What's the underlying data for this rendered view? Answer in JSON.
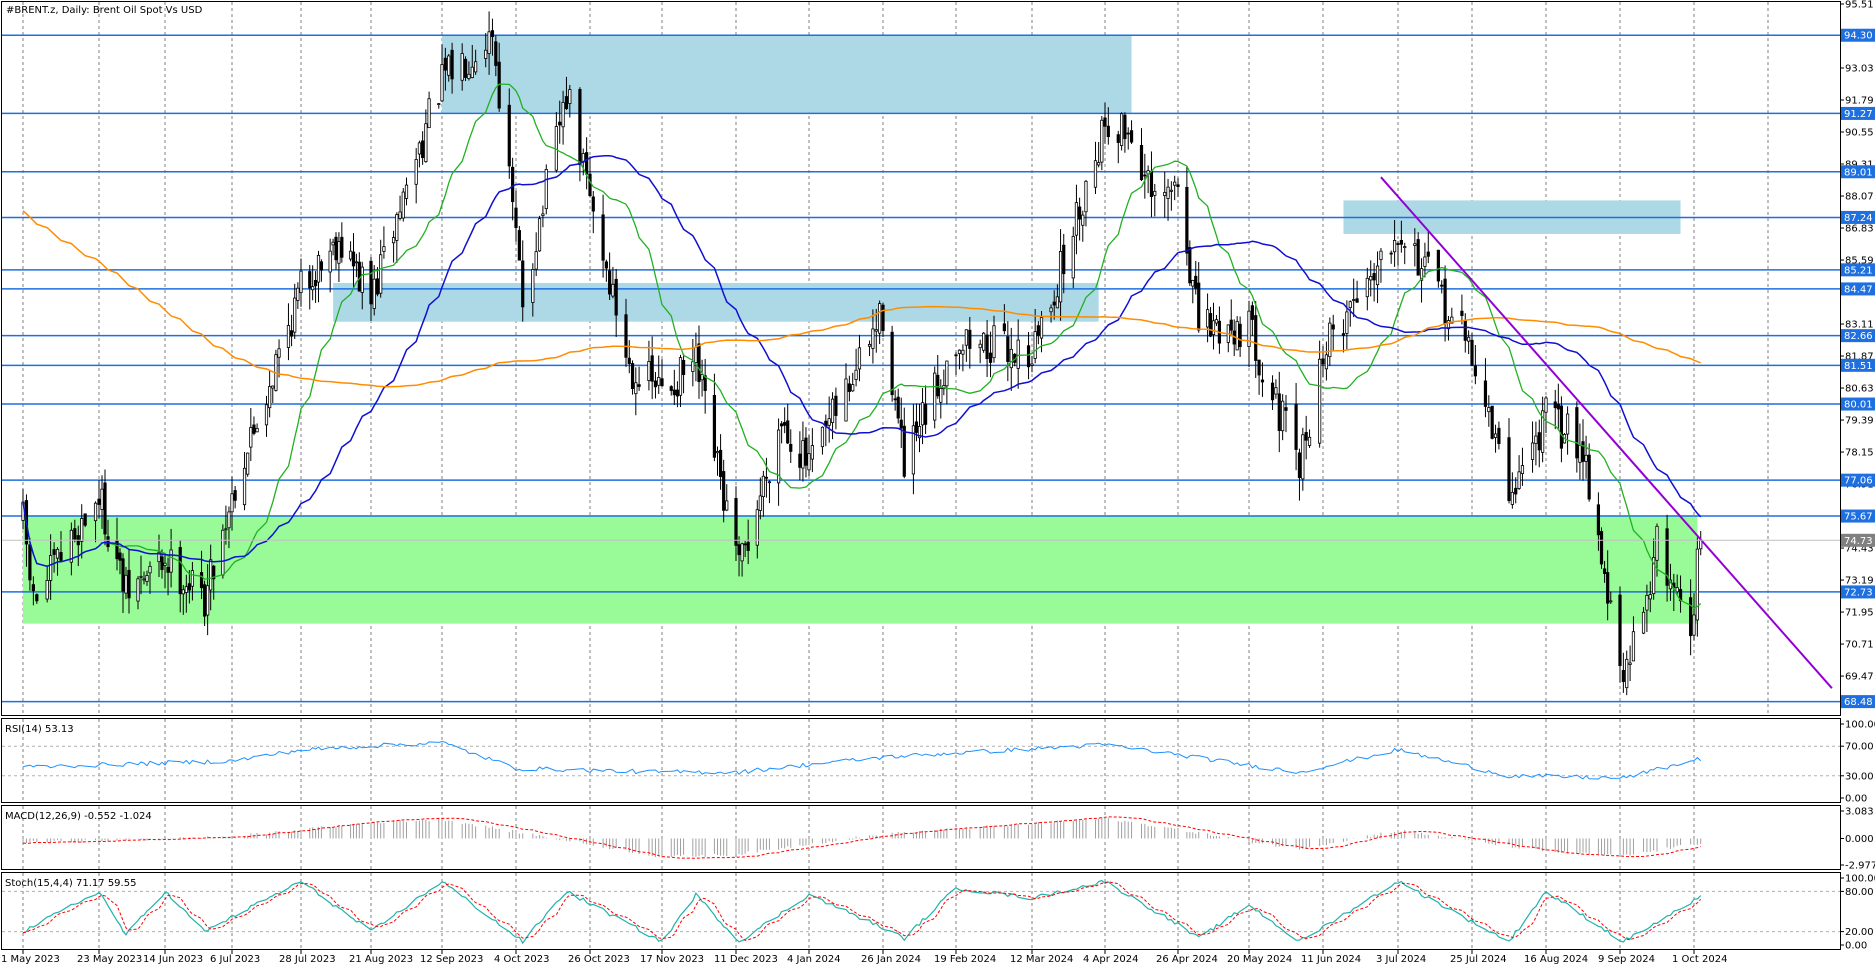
{
  "window": {
    "symbol_title": "#BRENT.z, Daily:  Brent Oil Spot Vs USD"
  },
  "colors": {
    "background": "#ffffff",
    "candle": "#000000",
    "level_line": "#1e6fe0",
    "level_tag": "#1e6fe0",
    "zone_blue": "#add8e6",
    "zone_green": "#98fb98",
    "ma_fast": "#22b022",
    "ma_mid": "#1010d0",
    "ma_slow": "#ff8c00",
    "trendline": "#9400d3",
    "rsi_line": "#1e90ff",
    "macd_hist": "#a0a0a0",
    "macd_signal": "#ff0000",
    "stoch_main": "#20b2aa",
    "stoch_signal": "#ff0000"
  },
  "price_axis": {
    "min": 68.0,
    "max": 95.51,
    "tick_labels": [
      "95.51",
      "93.03",
      "91.79",
      "90.55",
      "89.31",
      "88.07",
      "86.83",
      "85.59",
      "83.11",
      "81.87",
      "80.63",
      "79.39",
      "78.15",
      "76.91",
      "74.43",
      "73.19",
      "71.95",
      "70.71",
      "69.47"
    ],
    "current_price": "74.73"
  },
  "levels": [
    "94.30",
    "91.27",
    "89.01",
    "87.24",
    "85.21",
    "84.47",
    "82.66",
    "81.51",
    "80.01",
    "77.06",
    "75.67",
    "72.73",
    "68.48"
  ],
  "x_axis": {
    "date_labels": [
      "1 May 2023",
      "23 May 2023",
      "14 Jun 2023",
      "6 Jul 2023",
      "28 Jul 2023",
      "21 Aug 2023",
      "12 Sep 2023",
      "4 Oct 2023",
      "26 Oct 2023",
      "17 Nov 2023",
      "11 Dec 2023",
      "4 Jan 2024",
      "26 Jan 2024",
      "19 Feb 2024",
      "12 Mar 2024",
      "4 Apr 2024",
      "26 Apr 2024",
      "20 May 2024",
      "11 Jun 2024",
      "3 Jul 2024",
      "25 Jul 2024",
      "16 Aug 2024",
      "9 Sep 2024",
      "1 Oct 2024"
    ]
  },
  "zones": [
    {
      "kind": "blue",
      "from": "12 Sep 2023",
      "to": "12 Apr 2024",
      "low": 91.3,
      "high": 94.3
    },
    {
      "kind": "blue",
      "from": "8 Aug 2023",
      "to": "2 Apr 2024",
      "low": 83.2,
      "high": 84.7
    },
    {
      "kind": "blue",
      "from": "17 Jun 2024",
      "to": "27 Sep 2024",
      "low": 86.6,
      "high": 87.9
    },
    {
      "kind": "green",
      "from": "1 May 2023",
      "to": "2 Oct 2024",
      "low": 71.5,
      "high": 75.7
    }
  ],
  "trendline": {
    "from_date": "28 Jun 2024",
    "from_price": 88.8,
    "to_date": "11 Nov 2024",
    "to_price": 69.0
  },
  "chart_data": [
    {
      "type": "candlestick",
      "title": "#BRENT.z, Daily:  Brent Oil Spot Vs USD",
      "x_label_dates": [
        "1 May 2023",
        "23 May 2023",
        "14 Jun 2023",
        "6 Jul 2023",
        "28 Jul 2023",
        "21 Aug 2023",
        "12 Sep 2023",
        "4 Oct 2023",
        "26 Oct 2023",
        "17 Nov 2023",
        "11 Dec 2023",
        "4 Jan 2024",
        "26 Jan 2024",
        "19 Feb 2024",
        "12 Mar 2024",
        "4 Apr 2024",
        "26 Apr 2024",
        "20 May 2024",
        "11 Jun 2024",
        "3 Jul 2024",
        "25 Jul 2024",
        "16 Aug 2024",
        "9 Sep 2024",
        "1 Oct 2024"
      ],
      "approx_close_path": [
        {
          "date": "1 May 2023",
          "close": 75.5
        },
        {
          "date": "4 May 2023",
          "close": 72.3
        },
        {
          "date": "23 May 2023",
          "close": 76.5
        },
        {
          "date": "1 Jun 2023",
          "close": 72.6
        },
        {
          "date": "14 Jun 2023",
          "close": 74.0
        },
        {
          "date": "27 Jun 2023",
          "close": 72.5
        },
        {
          "date": "6 Jul 2023",
          "close": 76.5
        },
        {
          "date": "28 Jul 2023",
          "close": 84.5
        },
        {
          "date": "10 Aug 2023",
          "close": 86.5
        },
        {
          "date": "21 Aug 2023",
          "close": 84.0
        },
        {
          "date": "5 Sep 2023",
          "close": 90.0
        },
        {
          "date": "12 Sep 2023",
          "close": 92.5
        },
        {
          "date": "27 Sep 2023",
          "close": 94.5
        },
        {
          "date": "6 Oct 2023",
          "close": 84.0
        },
        {
          "date": "19 Oct 2023",
          "close": 92.0
        },
        {
          "date": "26 Oct 2023",
          "close": 88.0
        },
        {
          "date": "7 Nov 2023",
          "close": 81.5
        },
        {
          "date": "17 Nov 2023",
          "close": 80.5
        },
        {
          "date": "28 Nov 2023",
          "close": 81.5
        },
        {
          "date": "12 Dec 2023",
          "close": 73.5
        },
        {
          "date": "26 Dec 2023",
          "close": 79.5
        },
        {
          "date": "4 Jan 2024",
          "close": 77.5
        },
        {
          "date": "26 Jan 2024",
          "close": 83.5
        },
        {
          "date": "2 Feb 2024",
          "close": 77.5
        },
        {
          "date": "19 Feb 2024",
          "close": 82.5
        },
        {
          "date": "12 Mar 2024",
          "close": 82.0
        },
        {
          "date": "22 Mar 2024",
          "close": 85.5
        },
        {
          "date": "4 Apr 2024",
          "close": 91.0
        },
        {
          "date": "12 Apr 2024",
          "close": 90.5
        },
        {
          "date": "19 Apr 2024",
          "close": 87.5
        },
        {
          "date": "26 Apr 2024",
          "close": 88.5
        },
        {
          "date": "3 May 2024",
          "close": 83.0
        },
        {
          "date": "20 May 2024",
          "close": 83.0
        },
        {
          "date": "4 Jun 2024",
          "close": 77.5
        },
        {
          "date": "11 Jun 2024",
          "close": 82.0
        },
        {
          "date": "3 Jul 2024",
          "close": 87.0
        },
        {
          "date": "25 Jul 2024",
          "close": 82.0
        },
        {
          "date": "5 Aug 2024",
          "close": 76.5
        },
        {
          "date": "16 Aug 2024",
          "close": 79.5
        },
        {
          "date": "28 Aug 2024",
          "close": 78.5
        },
        {
          "date": "10 Sep 2024",
          "close": 69.0
        },
        {
          "date": "20 Sep 2024",
          "close": 74.5
        },
        {
          "date": "30 Sep 2024",
          "close": 71.5
        },
        {
          "date": "3 Oct 2024",
          "close": 74.73
        }
      ],
      "ylim": [
        68.0,
        95.51
      ]
    },
    {
      "type": "line",
      "title": "RSI(14) 53.13",
      "ylim": [
        0,
        100
      ],
      "tick_labels": [
        "100.00",
        "70.00",
        "30.00",
        "0.00"
      ],
      "approx_path": [
        {
          "date": "1 May 2023",
          "value": 42
        },
        {
          "date": "6 Jul 2023",
          "value": 50
        },
        {
          "date": "28 Jul 2023",
          "value": 65
        },
        {
          "date": "12 Sep 2023",
          "value": 75
        },
        {
          "date": "4 Oct 2023",
          "value": 40
        },
        {
          "date": "17 Nov 2023",
          "value": 35
        },
        {
          "date": "12 Dec 2023",
          "value": 35
        },
        {
          "date": "26 Jan 2024",
          "value": 55
        },
        {
          "date": "4 Apr 2024",
          "value": 72
        },
        {
          "date": "4 Jun 2024",
          "value": 35
        },
        {
          "date": "3 Jul 2024",
          "value": 65
        },
        {
          "date": "5 Aug 2024",
          "value": 30
        },
        {
          "date": "10 Sep 2024",
          "value": 27
        },
        {
          "date": "3 Oct 2024",
          "value": 53.13
        }
      ]
    },
    {
      "type": "line",
      "title": "MACD(12,26,9) -0.552 -1.024",
      "ylim": [
        -2.977,
        3.083
      ],
      "tick_labels": [
        "3.083",
        "0.000",
        "-2.977"
      ],
      "approx_path": [
        {
          "date": "1 May 2023",
          "value": -0.5
        },
        {
          "date": "6 Jul 2023",
          "value": 0.2
        },
        {
          "date": "21 Aug 2023",
          "value": 2.0
        },
        {
          "date": "12 Sep 2023",
          "value": 2.4
        },
        {
          "date": "17 Nov 2023",
          "value": -2.3
        },
        {
          "date": "11 Dec 2023",
          "value": -2.0
        },
        {
          "date": "26 Jan 2024",
          "value": 0.5
        },
        {
          "date": "4 Apr 2024",
          "value": 2.5
        },
        {
          "date": "4 Jun 2024",
          "value": -1.3
        },
        {
          "date": "3 Jul 2024",
          "value": 1.0
        },
        {
          "date": "16 Aug 2024",
          "value": -1.6
        },
        {
          "date": "10 Sep 2024",
          "value": -2.2
        },
        {
          "date": "3 Oct 2024",
          "value": -0.552
        }
      ]
    },
    {
      "type": "line",
      "title": "Stoch(15,4,4) 71.17 59.55",
      "ylim": [
        0,
        100
      ],
      "tick_labels": [
        "100.00",
        "80.00",
        "20.00",
        "0.00"
      ],
      "approx_path": [
        {
          "date": "1 May 2023",
          "value": 20
        },
        {
          "date": "23 May 2023",
          "value": 80
        },
        {
          "date": "1 Jun 2023",
          "value": 15
        },
        {
          "date": "14 Jun 2023",
          "value": 80
        },
        {
          "date": "27 Jun 2023",
          "value": 20
        },
        {
          "date": "28 Jul 2023",
          "value": 95
        },
        {
          "date": "21 Aug 2023",
          "value": 20
        },
        {
          "date": "12 Sep 2023",
          "value": 95
        },
        {
          "date": "6 Oct 2023",
          "value": 5
        },
        {
          "date": "19 Oct 2023",
          "value": 80
        },
        {
          "date": "17 Nov 2023",
          "value": 5
        },
        {
          "date": "28 Nov 2023",
          "value": 75
        },
        {
          "date": "12 Dec 2023",
          "value": 5
        },
        {
          "date": "4 Jan 2024",
          "value": 75
        },
        {
          "date": "2 Feb 2024",
          "value": 10
        },
        {
          "date": "19 Feb 2024",
          "value": 85
        },
        {
          "date": "12 Mar 2024",
          "value": 70
        },
        {
          "date": "4 Apr 2024",
          "value": 95
        },
        {
          "date": "3 May 2024",
          "value": 10
        },
        {
          "date": "20 May 2024",
          "value": 60
        },
        {
          "date": "4 Jun 2024",
          "value": 5
        },
        {
          "date": "3 Jul 2024",
          "value": 95
        },
        {
          "date": "5 Aug 2024",
          "value": 5
        },
        {
          "date": "16 Aug 2024",
          "value": 80
        },
        {
          "date": "10 Sep 2024",
          "value": 5
        },
        {
          "date": "3 Oct 2024",
          "value": 71.17
        }
      ]
    }
  ]
}
